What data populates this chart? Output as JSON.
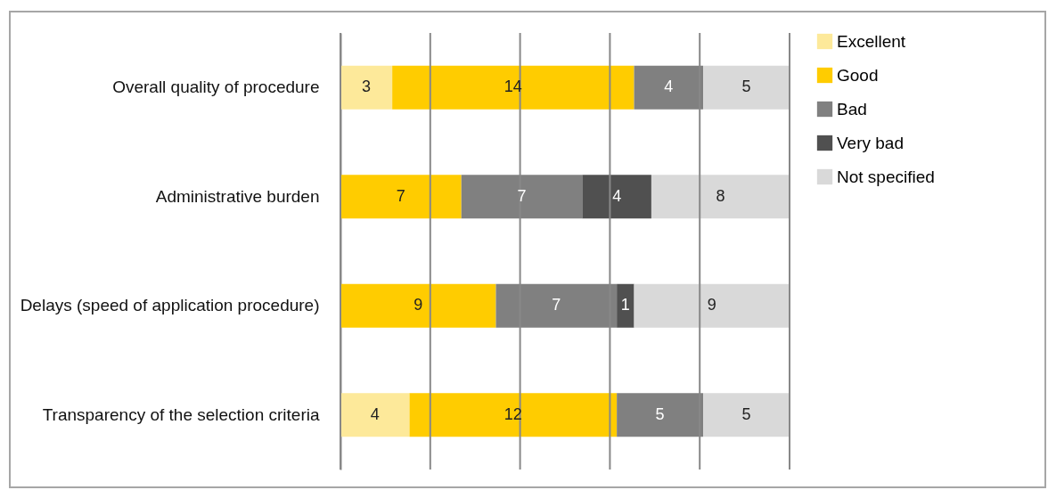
{
  "chart_data": {
    "type": "bar",
    "orientation": "horizontal",
    "stacked": true,
    "data_labels": true,
    "legend": "right",
    "grid": "x",
    "tick_labels": "y",
    "categories": [
      "Overall quality of procedure",
      "Administrative burden",
      "Delays (speed of application procedure)",
      "Transparency of the selection criteria"
    ],
    "xlim": [
      0,
      26
    ],
    "xticks": [
      {
        "value": 0,
        "label": null
      },
      {
        "value": 5.2,
        "label": null
      },
      {
        "value": 10.4,
        "label": null
      },
      {
        "value": 15.6,
        "label": null
      },
      {
        "value": 20.8,
        "label": null
      },
      {
        "value": 26,
        "label": null
      }
    ],
    "series": [
      {
        "name": "Excellent",
        "color": "#fde99a",
        "values": [
          3,
          null,
          null,
          4
        ]
      },
      {
        "name": "Good",
        "color": "#ffcc00",
        "values": [
          14,
          7,
          9,
          12
        ]
      },
      {
        "name": "Bad",
        "color": "#808080",
        "values": [
          4,
          7,
          7,
          5
        ]
      },
      {
        "name": "Very bad",
        "color": "#505050",
        "values": [
          null,
          4,
          1,
          null
        ]
      },
      {
        "name": "Not specified",
        "color": "#d9d9d9",
        "values": [
          5,
          8,
          9,
          5
        ]
      }
    ]
  }
}
